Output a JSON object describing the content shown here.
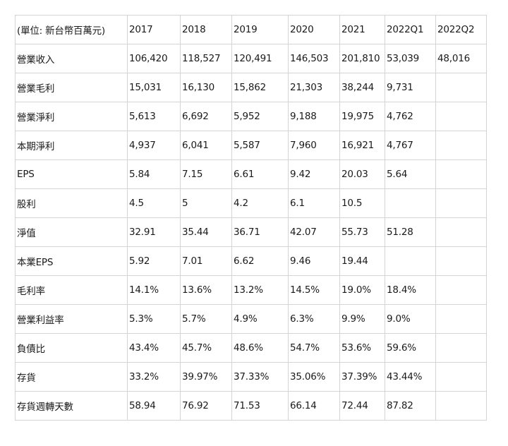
{
  "header": [
    "(單位: 新台幣百萬元)",
    "2017",
    "2018",
    "2019",
    "2020",
    "2021",
    "2022Q1",
    "2022Q2"
  ],
  "rows": [
    [
      "營業收入",
      "106,420",
      "118,527",
      "120,491",
      "146,503",
      "201,810",
      "53,039",
      "48,016"
    ],
    [
      "營業毛利",
      "15,031",
      "16,130",
      "15,862",
      "21,303",
      "38,244",
      "9,731",
      ""
    ],
    [
      "營業淨利",
      "5,613",
      "6,692",
      "5,952",
      "9,188",
      "19,975",
      "4,762",
      ""
    ],
    [
      "本期淨利",
      "4,937",
      "6,041",
      "5,587",
      "7,960",
      "16,921",
      "4,767",
      ""
    ],
    [
      "EPS",
      "5.84",
      "7.15",
      "6.61",
      "9.42",
      "20.03",
      "5.64",
      ""
    ],
    [
      "股利",
      "4.5",
      "5",
      "4.2",
      "6.1",
      "10.5",
      "",
      ""
    ],
    [
      "淨值",
      "32.91",
      "35.44",
      "36.71",
      "42.07",
      "55.73",
      "51.28",
      ""
    ],
    [
      "本業EPS",
      "5.92",
      "7.01",
      "6.62",
      "9.46",
      "19.44",
      "",
      ""
    ],
    [
      "毛利率",
      "14.1%",
      "13.6%",
      "13.2%",
      "14.5%",
      "19.0%",
      "18.4%",
      ""
    ],
    [
      "營業利益率",
      "5.3%",
      "5.7%",
      "4.9%",
      "6.3%",
      "9.9%",
      "9.0%",
      ""
    ],
    [
      "負債比",
      "43.4%",
      "45.7%",
      "48.6%",
      "54.7%",
      "53.6%",
      "59.6%",
      ""
    ],
    [
      "存貨",
      "33.2%",
      "39.97%",
      "37.33%",
      "35.06%",
      "37.39%",
      "43.44%",
      ""
    ],
    [
      "存貨週轉天數",
      "58.94",
      "76.92",
      "71.53",
      "66.14",
      "72.44",
      "87.82",
      ""
    ]
  ]
}
